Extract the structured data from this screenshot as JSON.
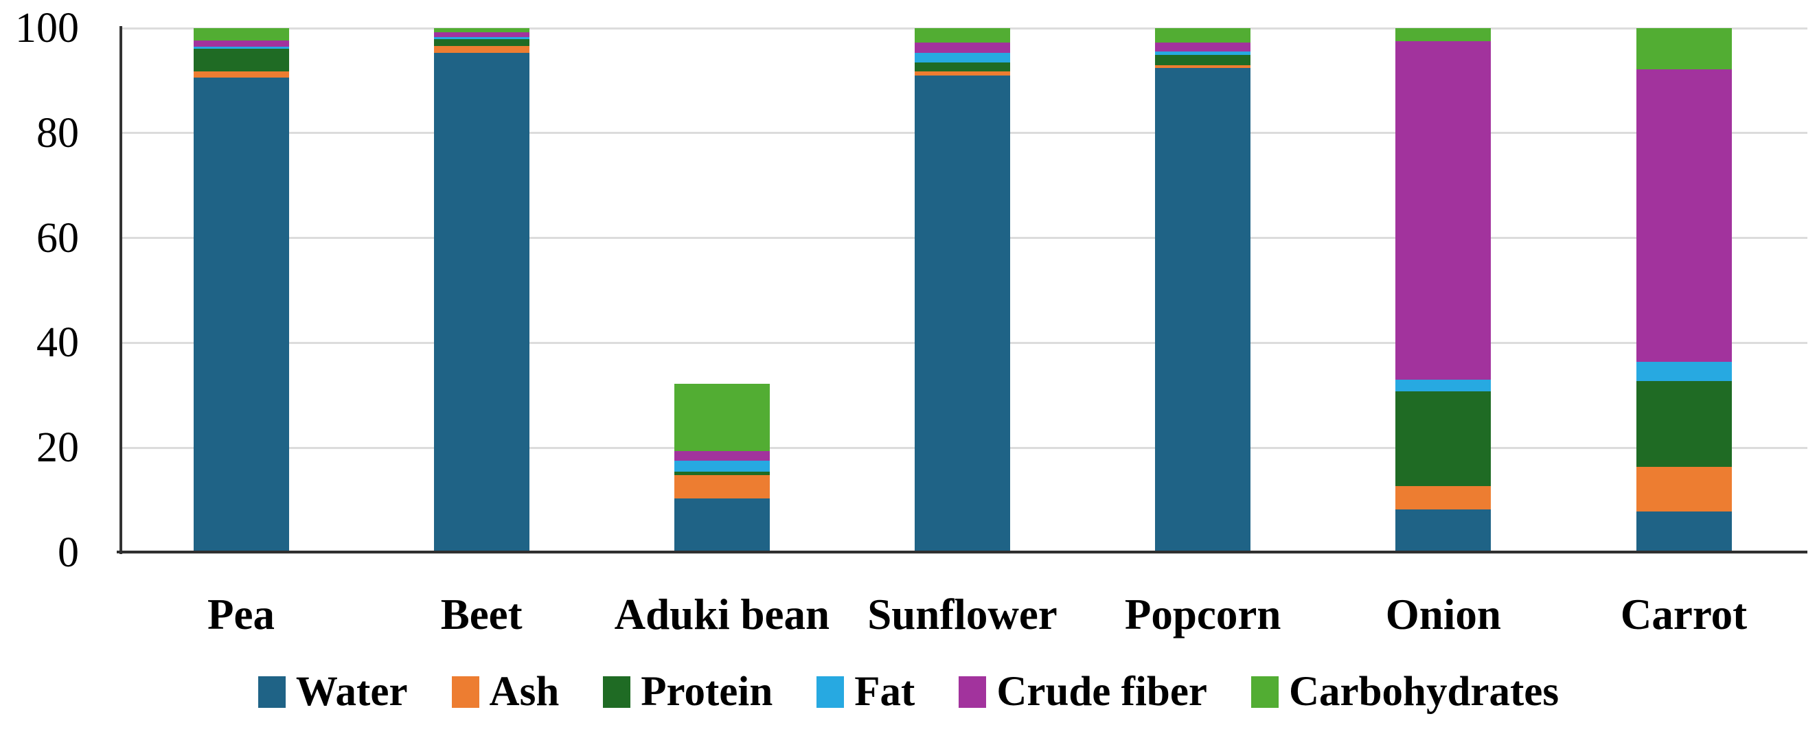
{
  "chart_data": {
    "type": "bar",
    "stacked": true,
    "title": "",
    "xlabel": "",
    "ylabel": "",
    "categories": [
      "Pea",
      "Beet",
      "Aduki bean",
      "Sunflower",
      "Popcorn",
      "Onion",
      "Carrot"
    ],
    "series": [
      {
        "name": "Water",
        "color": "#1F6386",
        "values": [
          90.6,
          95.3,
          10.4,
          91.0,
          92.4,
          8.2,
          7.9
        ]
      },
      {
        "name": "Ash",
        "color": "#ED7D31",
        "values": [
          1.1,
          1.3,
          4.4,
          0.7,
          0.6,
          4.5,
          8.5
        ]
      },
      {
        "name": "Protein",
        "color": "#1F6B24",
        "values": [
          4.4,
          1.3,
          0.6,
          1.8,
          1.9,
          18.0,
          16.3
        ]
      },
      {
        "name": "Fat",
        "color": "#27A9E1",
        "values": [
          0.4,
          0.4,
          2.2,
          1.8,
          0.7,
          2.3,
          3.7
        ]
      },
      {
        "name": "Crude fiber",
        "color": "#A2339D",
        "values": [
          1.1,
          0.9,
          1.8,
          2.0,
          1.7,
          64.5,
          55.7
        ]
      },
      {
        "name": "Carbohydrates",
        "color": "#52AD33",
        "values": [
          2.4,
          0.8,
          12.8,
          2.7,
          2.7,
          2.5,
          7.9
        ]
      }
    ],
    "bar_totals": [
      100,
      100,
      32.2,
      100,
      100,
      100,
      100
    ],
    "ylim": [
      0,
      100
    ],
    "yticks": [
      0,
      20,
      40,
      60,
      80,
      100
    ],
    "grid": true,
    "legend_position": "bottom"
  },
  "colors": {
    "gridline": "#DCDCDC",
    "axis": "#333333",
    "baseline": "#2F2F2F",
    "text": "#000000",
    "background": "#FFFFFF"
  }
}
